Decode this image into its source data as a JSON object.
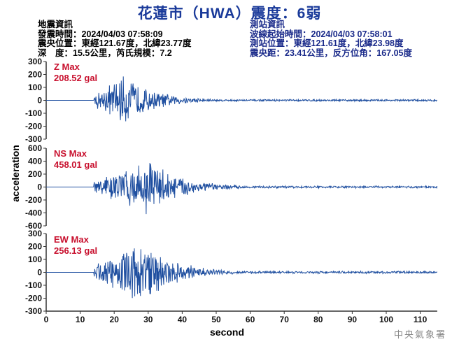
{
  "title": "花蓮市（HWA）震度：6弱",
  "quake_info": {
    "heading": "地震資訊",
    "time": "發震時間：2024/04/03 07:58:09",
    "epicenter": "震央位置：東經121.67度，北緯23.77度",
    "depth_mag": "深　度：15.5公里，芮氏規模：7.2"
  },
  "station_info": {
    "heading": "測站資訊",
    "start_time": "波線起始時間：2024/04/03 07:58:01",
    "location": "測站位置：東經121.61度，北緯23.98度",
    "distance": "震央距：23.41公里，反方位角：167.05度"
  },
  "axes": {
    "ylabel": "acceleration",
    "xlabel": "second"
  },
  "logo": "中央氣象署",
  "chart_data": [
    {
      "type": "line",
      "name": "Z",
      "annotation": [
        "Z Max",
        "208.52 gal"
      ],
      "max_gal": 208.52,
      "ylim": [
        -300,
        300
      ],
      "yticks": [
        300,
        200,
        100,
        0,
        -100,
        -200,
        -300
      ],
      "xlim": [
        0,
        115
      ],
      "onset_s": 14,
      "peak_time_s": 23,
      "color": "#1f4fa0"
    },
    {
      "type": "line",
      "name": "NS",
      "annotation": [
        "NS Max",
        "458.01 gal"
      ],
      "max_gal": 458.01,
      "ylim": [
        -600,
        600
      ],
      "yticks": [
        600,
        400,
        200,
        0,
        -200,
        -400,
        -600
      ],
      "xlim": [
        0,
        115
      ],
      "onset_s": 14,
      "peak_time_s": 31,
      "color": "#1f4fa0"
    },
    {
      "type": "line",
      "name": "EW",
      "annotation": [
        "EW Max",
        "256.13 gal"
      ],
      "max_gal": 256.13,
      "ylim": [
        -300,
        300
      ],
      "yticks": [
        300,
        200,
        100,
        0,
        -100,
        -200,
        -300
      ],
      "xlim": [
        0,
        115
      ],
      "xticks": [
        0,
        10,
        20,
        30,
        40,
        50,
        60,
        70,
        80,
        90,
        100,
        110
      ],
      "onset_s": 14,
      "peak_time_s": 29,
      "color": "#1f4fa0"
    }
  ]
}
